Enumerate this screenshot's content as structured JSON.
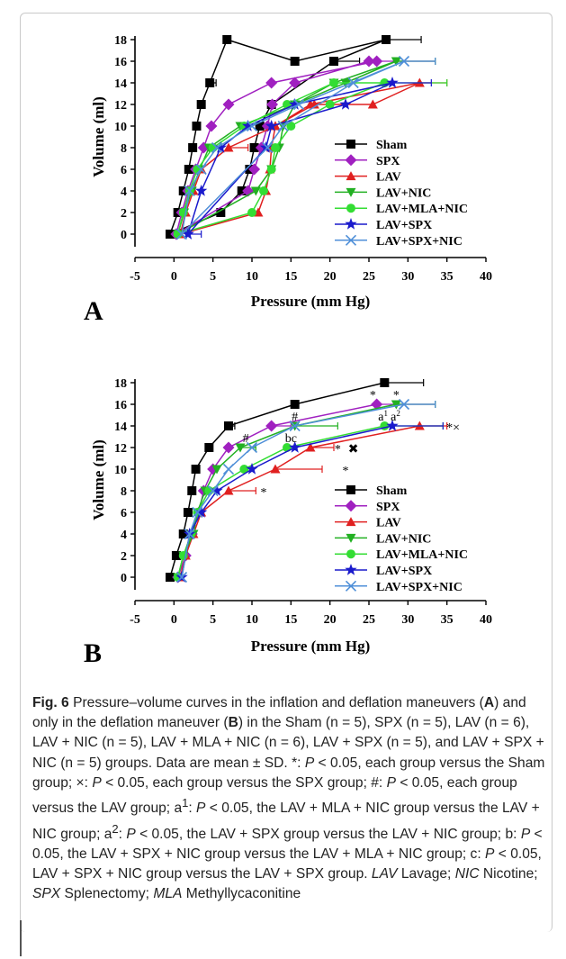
{
  "chart_data": [
    {
      "type": "line",
      "panel_label": "A",
      "xlabel": "Pressure (mm Hg)",
      "ylabel": "Volume (ml)",
      "xlim": [
        -5,
        40
      ],
      "ylim": [
        0,
        18
      ],
      "xticks": [
        "-5",
        "0",
        "5",
        "10",
        "15",
        "20",
        "25",
        "30",
        "35",
        "40"
      ],
      "yticks": [
        "0",
        "2",
        "4",
        "6",
        "8",
        "10",
        "12",
        "14",
        "16",
        "18"
      ],
      "grid": false,
      "legend_position": "right",
      "series": [
        {
          "name": "Sham",
          "color": "#000000",
          "marker": "square",
          "x": [
            -0.5,
            0.5,
            1.2,
            1.9,
            2.4,
            2.9,
            3.5,
            4.6,
            6.8,
            15.5,
            27.2,
            20.5,
            12.5,
            11.0,
            10.3,
            9.7,
            8.7,
            6.0,
            -0.5
          ],
          "y": [
            0,
            2,
            4,
            6,
            8,
            10,
            12,
            14,
            18,
            16,
            18,
            16,
            12,
            10,
            8,
            6,
            4,
            2,
            0
          ],
          "err": [
            0,
            0,
            0,
            0,
            0,
            0,
            0,
            0.8,
            0,
            0,
            4.5,
            3.3,
            0,
            0,
            0,
            0,
            0,
            0,
            0
          ]
        },
        {
          "name": "SPX",
          "color": "#a020c0",
          "marker": "diamond",
          "x": [
            0.3,
            1.0,
            1.8,
            2.8,
            3.8,
            4.8,
            7.0,
            12.5,
            26.0,
            25.0,
            15.5,
            12.6,
            12.0,
            11.2,
            10.3,
            9.5,
            0.3
          ],
          "y": [
            0,
            2,
            4,
            6,
            8,
            10,
            12,
            14,
            16,
            16,
            14,
            12,
            10,
            8,
            6,
            4,
            0
          ],
          "err": [
            0,
            0,
            0,
            0,
            0,
            0,
            0,
            0,
            7.5,
            0,
            0,
            0,
            0,
            0,
            0,
            0,
            0
          ]
        },
        {
          "name": "LAV",
          "color": "#e02020",
          "marker": "triangle-up",
          "x": [
            0.8,
            1.5,
            2.5,
            3.5,
            7.0,
            13.0,
            18.0,
            25.5,
            31.5,
            17.5,
            13.0,
            12.5,
            12.3,
            11.8,
            10.8,
            0.8
          ],
          "y": [
            0,
            2,
            4,
            6,
            8,
            10,
            12,
            12,
            14,
            12,
            10,
            8,
            6,
            4,
            2,
            0
          ],
          "err": [
            0,
            0,
            0,
            0,
            2.5,
            0,
            0,
            0,
            3.5,
            0,
            0,
            0,
            0,
            0,
            0,
            0
          ]
        },
        {
          "name": "LAV+NIC",
          "color": "#22b022",
          "marker": "triangle-down",
          "x": [
            0.5,
            1.3,
            2.3,
            3.3,
            4.5,
            8.5,
            15.5,
            20.5,
            28.5,
            22.0,
            15.5,
            14.0,
            13.5,
            12.5,
            10.5,
            0.5
          ],
          "y": [
            0,
            2,
            4,
            6,
            8,
            10,
            12,
            14,
            16,
            14,
            12,
            10,
            8,
            6,
            4,
            0
          ],
          "err": [
            0,
            0,
            0,
            0,
            0,
            0,
            0,
            0,
            5.0,
            0,
            0,
            0,
            0,
            0,
            0,
            0
          ]
        },
        {
          "name": "LAV+MLA+NIC",
          "color": "#33dd33",
          "marker": "circle",
          "x": [
            0.5,
            1.2,
            2.0,
            3.0,
            5.0,
            9.0,
            14.5,
            20.5,
            27.0,
            20.0,
            15.0,
            13.0,
            12.5,
            11.5,
            10.0,
            0.5
          ],
          "y": [
            0,
            2,
            4,
            6,
            8,
            10,
            12,
            14,
            14,
            12,
            10,
            8,
            6,
            4,
            2,
            0
          ],
          "err": [
            0,
            0,
            0,
            0,
            0,
            0,
            0,
            0,
            8.0,
            0,
            0,
            0,
            0,
            0,
            0,
            0
          ]
        },
        {
          "name": "LAV+SPX",
          "color": "#1a1acc",
          "marker": "star",
          "x": [
            1.8,
            3.5,
            6.0,
            9.5,
            15.5,
            28.0,
            22.0,
            12.5,
            11.8,
            1.8
          ],
          "y": [
            0,
            4,
            8,
            10,
            12,
            14,
            12,
            10,
            8,
            0
          ],
          "err": [
            1.7,
            0,
            0,
            0,
            0,
            5.0,
            0,
            0,
            0,
            0
          ]
        },
        {
          "name": "LAV+SPX+NIC",
          "color": "#4f8fd8",
          "marker": "x",
          "x": [
            1.0,
            2.0,
            3.5,
            5.5,
            10.0,
            16.0,
            29.5,
            23.0,
            14.0,
            12.0,
            1.0
          ],
          "y": [
            0,
            4,
            6,
            8,
            10,
            12,
            16,
            14,
            10,
            8,
            0
          ],
          "err": [
            0,
            0,
            0,
            0,
            0,
            0,
            4.0,
            0,
            0,
            0,
            0
          ]
        }
      ]
    },
    {
      "type": "line",
      "panel_label": "B",
      "xlabel": "Pressure (mm Hg)",
      "ylabel": "Volume (ml)",
      "xlim": [
        -5,
        40
      ],
      "ylim": [
        0,
        18
      ],
      "xticks": [
        "-5",
        "0",
        "5",
        "10",
        "15",
        "20",
        "25",
        "30",
        "35",
        "40"
      ],
      "yticks": [
        "0",
        "2",
        "4",
        "6",
        "8",
        "10",
        "12",
        "14",
        "16",
        "18"
      ],
      "grid": false,
      "legend_position": "right",
      "series": [
        {
          "name": "Sham",
          "color": "#000000",
          "marker": "square",
          "x": [
            -0.5,
            0.3,
            1.2,
            1.8,
            2.3,
            2.8,
            4.5,
            7.0,
            15.5,
            27.0
          ],
          "y": [
            0,
            2,
            4,
            6,
            8,
            10,
            12,
            14,
            16,
            18
          ],
          "err": [
            0,
            0,
            0,
            0,
            0,
            0,
            0,
            0.8,
            0,
            5.0
          ]
        },
        {
          "name": "SPX",
          "color": "#a020c0",
          "marker": "diamond",
          "x": [
            0.5,
            1.5,
            2.3,
            3.2,
            3.8,
            5.0,
            7.0,
            12.5,
            26.0
          ],
          "y": [
            0,
            2,
            4,
            6,
            8,
            10,
            12,
            14,
            16
          ],
          "err": [
            0,
            0,
            0,
            0,
            0,
            0,
            0,
            2.5,
            7.5
          ]
        },
        {
          "name": "LAV",
          "color": "#e02020",
          "marker": "triangle-up",
          "x": [
            0.8,
            1.5,
            2.5,
            3.5,
            7.0,
            13.0,
            17.5,
            31.5
          ],
          "y": [
            0,
            2,
            4,
            6,
            8,
            10,
            12,
            14
          ],
          "err": [
            0,
            0,
            0,
            0,
            3.5,
            6.0,
            3.0,
            3.5
          ]
        },
        {
          "name": "LAV+NIC",
          "color": "#22b022",
          "marker": "triangle-down",
          "x": [
            0.5,
            1.2,
            2.5,
            3.0,
            4.0,
            5.5,
            8.5,
            15.5,
            28.5
          ],
          "y": [
            0,
            2,
            4,
            6,
            8,
            10,
            12,
            14,
            16
          ],
          "err": [
            0,
            0,
            0,
            0,
            0,
            0,
            2.0,
            5.5,
            5.0
          ]
        },
        {
          "name": "LAV+MLA+NIC",
          "color": "#33dd33",
          "marker": "circle",
          "x": [
            0.5,
            1.2,
            2.2,
            3.0,
            4.5,
            9.0,
            14.5,
            27.0
          ],
          "y": [
            0,
            2,
            4,
            6,
            8,
            10,
            12,
            14
          ],
          "err": [
            0,
            0,
            0,
            0,
            0,
            0,
            0,
            7.5
          ]
        },
        {
          "name": "LAV+SPX",
          "color": "#1a1acc",
          "marker": "star",
          "x": [
            1.0,
            2.0,
            3.5,
            5.5,
            10.0,
            15.5,
            28.0
          ],
          "y": [
            0,
            4,
            6,
            8,
            10,
            12,
            14
          ],
          "err": [
            0,
            0,
            0,
            0,
            0,
            0,
            6.5
          ]
        },
        {
          "name": "LAV+SPX+NIC",
          "color": "#4f8fd8",
          "marker": "x",
          "x": [
            1.0,
            2.0,
            3.0,
            5.0,
            7.0,
            10.0,
            15.5,
            29.5
          ],
          "y": [
            0,
            4,
            6,
            8,
            10,
            12,
            14,
            16
          ],
          "err": [
            0,
            0,
            0,
            0,
            0,
            0,
            0,
            4.0
          ]
        }
      ],
      "annotations": [
        {
          "text": "*",
          "x": 25.5,
          "y": 17.0
        },
        {
          "text": "*",
          "x": 28.5,
          "y": 17.0
        },
        {
          "text": "#",
          "x": 15.5,
          "y": 15.0
        },
        {
          "text": "a",
          "x": 26.8,
          "y": 15.0,
          "sup": "1"
        },
        {
          "text": "a",
          "x": 28.4,
          "y": 15.0,
          "sup": "2"
        },
        {
          "text": "bc",
          "x": 15.0,
          "y": 13.0
        },
        {
          "text": "#",
          "x": 9.2,
          "y": 13.0
        },
        {
          "text": "*×",
          "x": 35.8,
          "y": 14.0
        },
        {
          "text": "*",
          "x": 21.0,
          "y": 12.0
        },
        {
          "text": "✖",
          "x": 23.0,
          "y": 12.0
        },
        {
          "text": "*",
          "x": 22.0,
          "y": 10.0
        },
        {
          "text": "*",
          "x": 11.5,
          "y": 8.0
        }
      ]
    }
  ],
  "caption": {
    "label": "Fig. 6",
    "parts": [
      {
        "t": "Pressure–volume curves in the inflation and deflation maneuvers ("
      },
      {
        "t": "A",
        "b": true
      },
      {
        "t": ") and only in the deflation maneuver ("
      },
      {
        "t": "B",
        "b": true
      },
      {
        "t": ") in the Sham (n = 5), SPX (n = 5), LAV (n = 6), LAV + NIC (n = 5), LAV + MLA + NIC (n = 6), LAV + SPX (n = 5), and LAV + SPX + NIC (n = 5) groups. Data are mean ± SD. *: "
      },
      {
        "t": "P",
        "i": true
      },
      {
        "t": " < 0.05, each group versus the Sham group; ×: "
      },
      {
        "t": "P",
        "i": true
      },
      {
        "t": " < 0.05, each group versus the SPX group; #: "
      },
      {
        "t": "P",
        "i": true
      },
      {
        "t": " < 0.05, each group versus the LAV group; a"
      },
      {
        "t": "1",
        "sup": true
      },
      {
        "t": ": "
      },
      {
        "t": "P",
        "i": true
      },
      {
        "t": " < 0.05, the LAV + MLA + NIC group versus the LAV + NIC group; a"
      },
      {
        "t": "2",
        "sup": true
      },
      {
        "t": ": "
      },
      {
        "t": "P",
        "i": true
      },
      {
        "t": " < 0.05, the LAV + SPX group versus the LAV + NIC group; b: "
      },
      {
        "t": "P",
        "i": true
      },
      {
        "t": " < 0.05, the LAV + SPX + NIC group versus the LAV + MLA + NIC group; c: "
      },
      {
        "t": "P",
        "i": true
      },
      {
        "t": " < 0.05, LAV + SPX + NIC group versus the LAV + SPX group. "
      },
      {
        "t": "LAV",
        "i": true
      },
      {
        "t": " Lavage; "
      },
      {
        "t": "NIC",
        "i": true
      },
      {
        "t": " Nicotine; "
      },
      {
        "t": "SPX",
        "i": true
      },
      {
        "t": " Splenectomy; "
      },
      {
        "t": "MLA",
        "i": true
      },
      {
        "t": " Methyllycaconitine"
      }
    ]
  }
}
